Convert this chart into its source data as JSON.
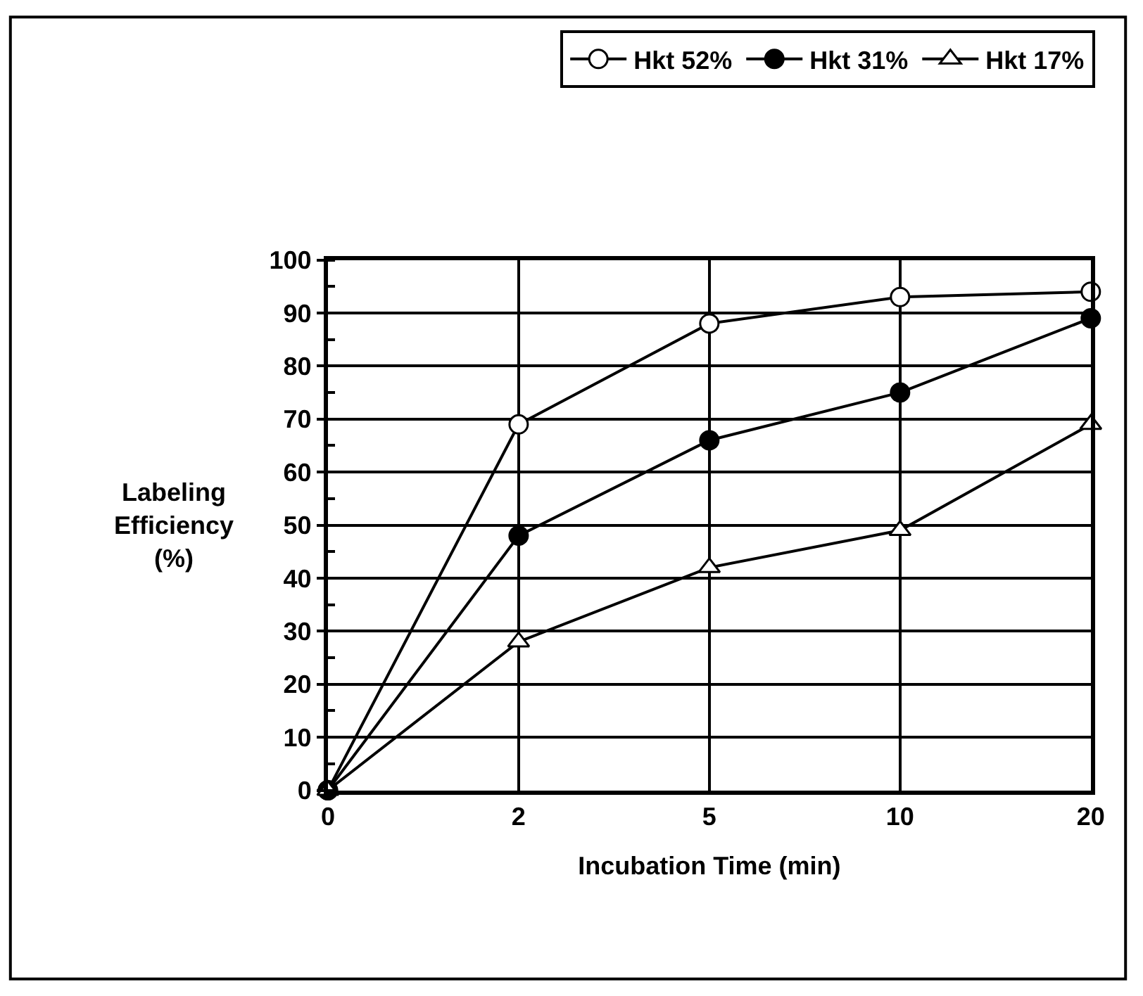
{
  "chart_data": {
    "type": "line",
    "xlabel": "Incubation Time (min)",
    "ylabel": "Labeling Efficiency (%)",
    "categories": [
      "0",
      "2",
      "5",
      "10",
      "20"
    ],
    "ylim": [
      0,
      100
    ],
    "yticks": [
      0,
      10,
      20,
      30,
      40,
      50,
      60,
      70,
      80,
      90,
      100
    ],
    "grid": true,
    "legend": "top right",
    "line_style": "solid",
    "series": [
      {
        "name": "Hkt 52%",
        "color": "#000000",
        "marker": "circle",
        "colors": [
          "#ffffff",
          "#ffffff",
          "#ffffff",
          "#ffffff",
          "#ffffff"
        ],
        "values": [
          0,
          69,
          88,
          93,
          94
        ]
      },
      {
        "name": "Hkt 31%",
        "color": "#000000",
        "marker": "circle",
        "values": [
          0,
          48,
          66,
          75,
          89
        ]
      },
      {
        "name": "Hkt 17%",
        "color": "#000000",
        "marker": "triangle",
        "colors": [
          "#ffffff",
          "#ffffff",
          "#ffffff",
          "#ffffff",
          "#ffffff"
        ],
        "values": [
          0,
          28,
          42,
          49,
          69
        ]
      }
    ]
  }
}
